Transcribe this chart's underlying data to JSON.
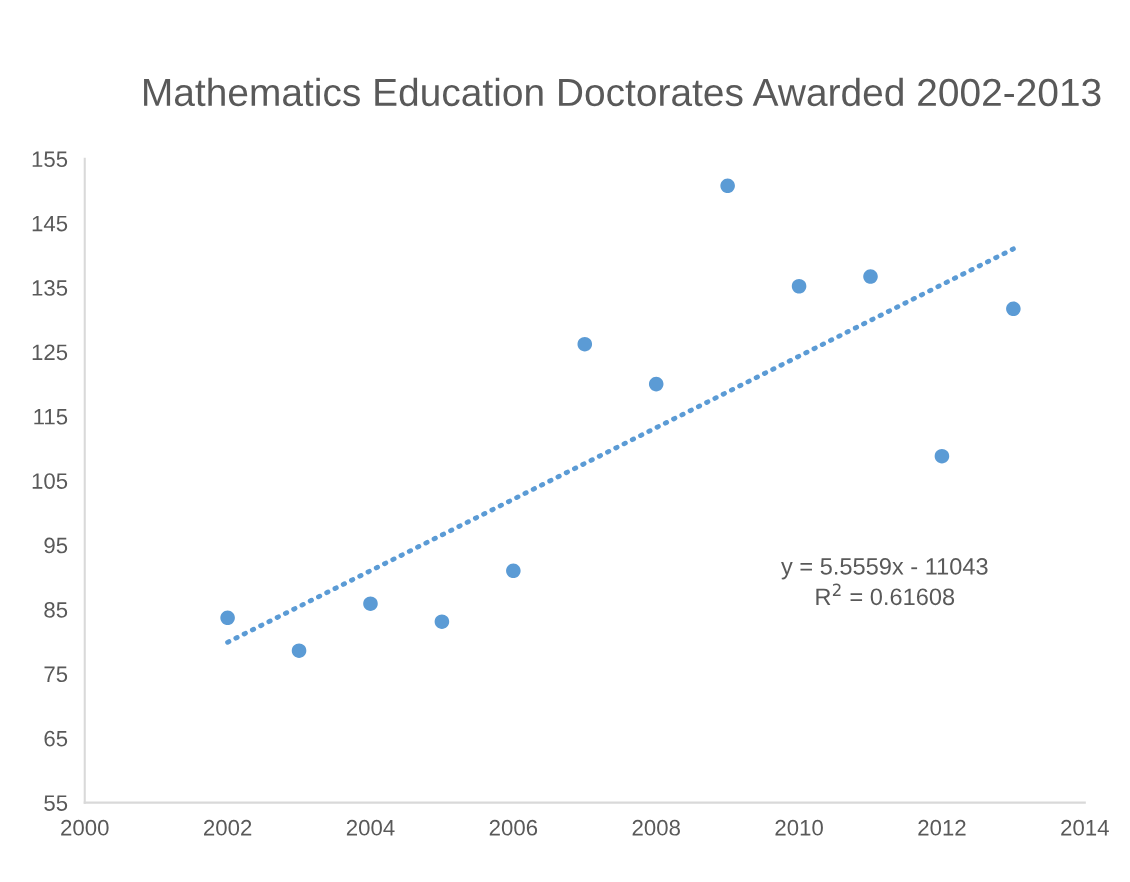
{
  "chart_data": {
    "type": "scatter",
    "title": "Mathematics Education Doctorates Awarded 2002-2013",
    "x": [
      2002,
      2003,
      2004,
      2005,
      2006,
      2007,
      2008,
      2009,
      2010,
      2011,
      2012,
      2013
    ],
    "series": [
      {
        "color": "#5b9bd5",
        "marker": "circle",
        "values": [
          83.7,
          78.6,
          85.9,
          83.1,
          91.0,
          126.2,
          120.0,
          150.8,
          135.2,
          136.7,
          108.8,
          131.7
        ]
      },
      {
        "type": "line",
        "color": "#5b9bd5",
        "line_style": "dotted",
        "marker": "none",
        "x": [
          2002,
          2013
        ],
        "values": [
          79.9,
          141.0
        ]
      }
    ],
    "xlim": [
      2000,
      2014
    ],
    "xticks": [
      2000,
      2002,
      2004,
      2006,
      2008,
      2010,
      2012,
      2014
    ],
    "ylim": [
      55,
      155
    ],
    "yticks": [
      55,
      65,
      75,
      85,
      95,
      105,
      115,
      125,
      135,
      145,
      155
    ],
    "grid": false,
    "annotations": [
      "y = 5.5559x - 11043\nR$^{2}$ = 0.61608"
    ]
  }
}
